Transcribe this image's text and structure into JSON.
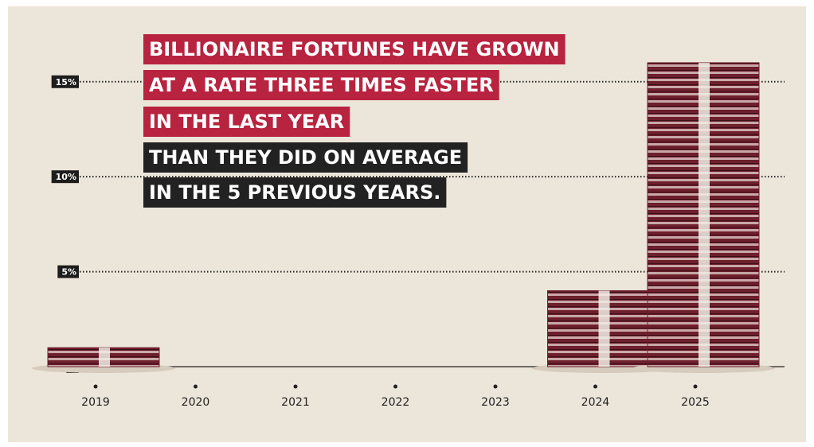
{
  "chart_data": {
    "type": "bar",
    "title_lines": [
      {
        "text": "BILLIONAIRE FORTUNES HAVE GROWN",
        "color": "#b8233f"
      },
      {
        "text": "AT A RATE THREE TIMES FASTER",
        "color": "#b8233f"
      },
      {
        "text": "IN THE LAST YEAR",
        "color": "#b8233f"
      },
      {
        "text": "THAN THEY DID ON AVERAGE",
        "color": "#222222"
      },
      {
        "text": "IN THE 5 PREVIOUS YEARS.",
        "color": "#222222"
      }
    ],
    "categories": [
      "2019",
      "2020",
      "2021",
      "2022",
      "2023",
      "2024",
      "2025"
    ],
    "values": [
      1,
      null,
      null,
      null,
      null,
      4,
      16
    ],
    "color": "#6e1f2c",
    "ylim": [
      0,
      17
    ],
    "yticks": [
      0,
      {
        "value": 5,
        "label": "5%"
      },
      {
        "value": 10,
        "label": "10%"
      },
      {
        "value": 15,
        "label": "15%"
      }
    ],
    "grid": true
  }
}
